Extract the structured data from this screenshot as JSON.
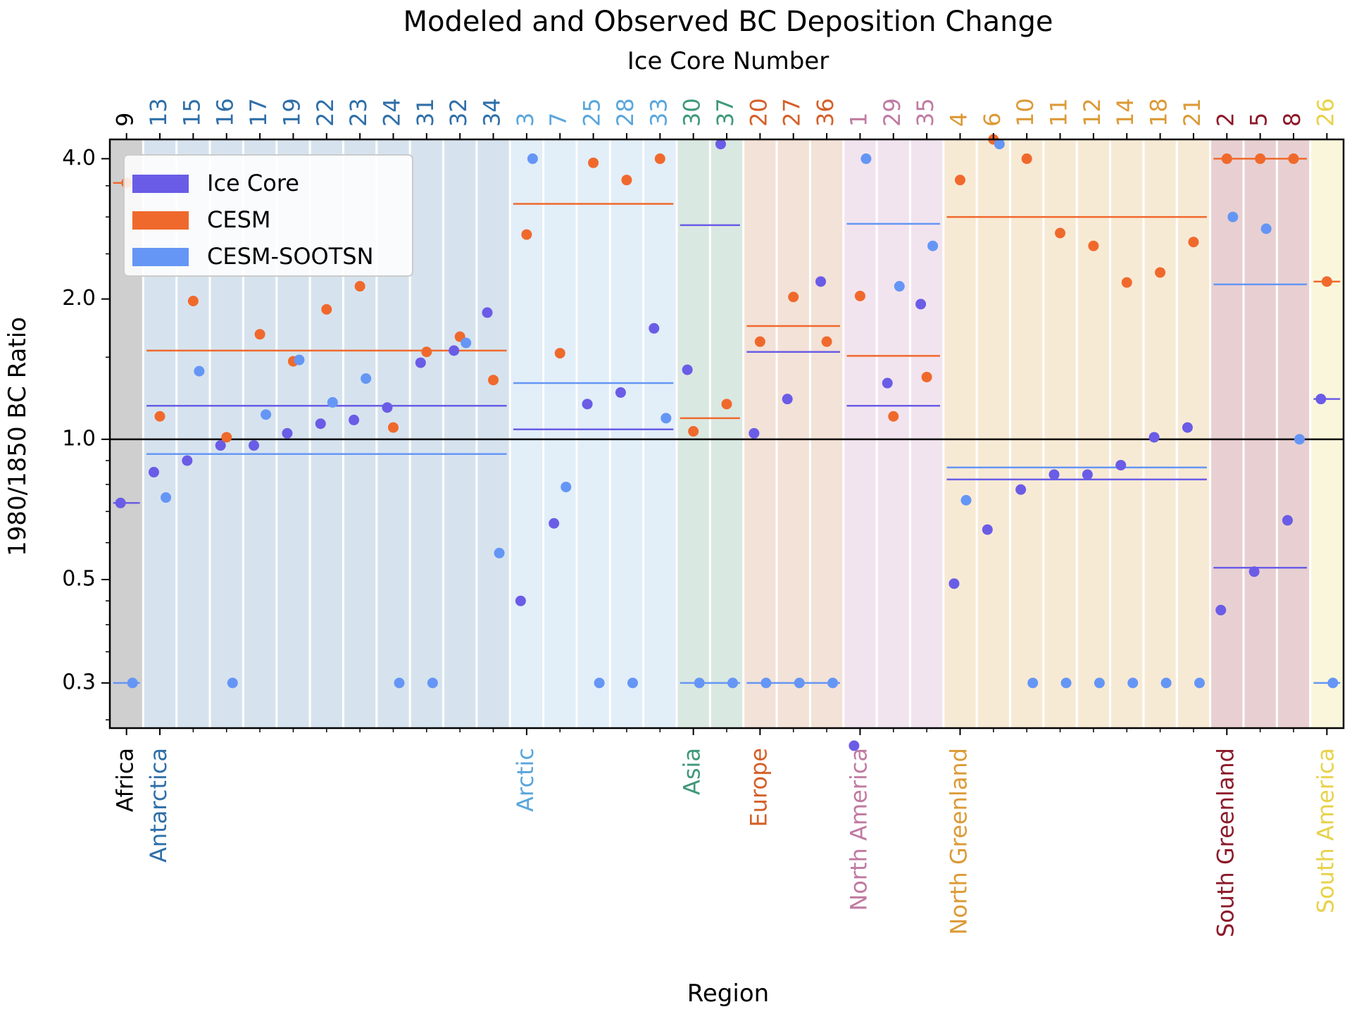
{
  "chart_data": {
    "type": "scatter",
    "title": "Modeled and Observed BC Deposition Change",
    "top_xlabel": "Ice Core Number",
    "xlabel": "Region",
    "ylabel": "1980/1850 BC Ratio",
    "yscale": "log",
    "ylim": [
      0.24,
      4.4
    ],
    "yticks": [
      "4.0",
      "2.0",
      "1.0",
      "0.5",
      "0.3"
    ],
    "reference_line": 1.0,
    "legend": {
      "placement": "top-left",
      "entries": [
        {
          "label": "Ice Core",
          "color": "#6a5ce6"
        },
        {
          "label": "CESM",
          "color": "#f0692c"
        },
        {
          "label": "CESM-SOOTSN",
          "color": "#6596f5"
        }
      ]
    },
    "colors": {
      "ice_core": "#6a5ce6",
      "cesm": "#f0692c",
      "sootsn": "#6596f5"
    },
    "groups": [
      {
        "region": "Africa",
        "color": "#000000",
        "bg": "#cfcfcf",
        "mean": {
          "ice_core": 0.73,
          "cesm": 3.55,
          "sootsn": 0.3
        },
        "cores": [
          {
            "core": "9",
            "ice_core": 0.73,
            "cesm": 3.55,
            "sootsn": 0.3
          }
        ]
      },
      {
        "region": "Antarctica",
        "color": "#2f6fa8",
        "bg": "#d6e3ee",
        "mean": {
          "ice_core": 1.18,
          "cesm": 1.55,
          "sootsn": 0.93
        },
        "cores": [
          {
            "core": "13",
            "ice_core": 0.85,
            "cesm": 1.12,
            "sootsn": 0.75
          },
          {
            "core": "15",
            "ice_core": 0.9,
            "cesm": 1.98,
            "sootsn": 1.4
          },
          {
            "core": "16",
            "ice_core": 0.97,
            "cesm": 1.01,
            "sootsn": 0.3
          },
          {
            "core": "17",
            "ice_core": 0.97,
            "cesm": 1.68,
            "sootsn": 1.13
          },
          {
            "core": "19",
            "ice_core": 1.03,
            "cesm": 1.47,
            "sootsn": 1.48
          },
          {
            "core": "22",
            "ice_core": 1.08,
            "cesm": 1.9,
            "sootsn": 1.2
          },
          {
            "core": "23",
            "ice_core": 1.1,
            "cesm": 2.13,
            "sootsn": 1.35
          },
          {
            "core": "24",
            "ice_core": 1.17,
            "cesm": 1.06,
            "sootsn": 0.3
          },
          {
            "core": "31",
            "ice_core": 1.46,
            "cesm": 1.54,
            "sootsn": 0.3
          },
          {
            "core": "32",
            "ice_core": 1.55,
            "cesm": 1.66,
            "sootsn": 1.61
          },
          {
            "core": "34",
            "ice_core": 1.87,
            "cesm": 1.34,
            "sootsn": 0.57
          }
        ]
      },
      {
        "region": "Arctic",
        "color": "#5aa6dc",
        "bg": "#e2eef8",
        "mean": {
          "ice_core": 1.05,
          "cesm": 3.2,
          "sootsn": 1.32
        },
        "cores": [
          {
            "core": "3",
            "ice_core": 0.45,
            "cesm": 2.75,
            "sootsn": 4.0
          },
          {
            "core": "7",
            "ice_core": 0.66,
            "cesm": 1.53,
            "sootsn": 0.79
          },
          {
            "core": "25",
            "ice_core": 1.19,
            "cesm": 3.92,
            "sootsn": 0.3
          },
          {
            "core": "28",
            "ice_core": 1.26,
            "cesm": 3.6,
            "sootsn": 0.3
          },
          {
            "core": "33",
            "ice_core": 1.73,
            "cesm": 4.0,
            "sootsn": 1.11
          }
        ]
      },
      {
        "region": "Asia",
        "color": "#3e9978",
        "bg": "#dae8e2",
        "mean": {
          "ice_core": 2.88,
          "cesm": 1.11,
          "sootsn": 0.3
        },
        "cores": [
          {
            "core": "30",
            "ice_core": 1.41,
            "cesm": 1.04,
            "sootsn": 0.3
          },
          {
            "core": "37",
            "ice_core": 4.3,
            "cesm": 1.19,
            "sootsn": 0.3
          }
        ]
      },
      {
        "region": "Europe",
        "color": "#d4602a",
        "bg": "#f3e2d7",
        "mean": {
          "ice_core": 1.54,
          "cesm": 1.75,
          "sootsn": 0.3
        },
        "cores": [
          {
            "core": "20",
            "ice_core": 1.03,
            "cesm": 1.62,
            "sootsn": 0.3
          },
          {
            "core": "27",
            "ice_core": 1.22,
            "cesm": 2.02,
            "sootsn": 0.3
          },
          {
            "core": "36",
            "ice_core": 2.18,
            "cesm": 1.62,
            "sootsn": 0.3
          }
        ]
      },
      {
        "region": "North America",
        "color": "#c07aa2",
        "bg": "#f2e4ee",
        "mean": {
          "ice_core": 1.18,
          "cesm": 1.51,
          "sootsn": 2.9
        },
        "cores": [
          {
            "core": "1",
            "ice_core": 0.22,
            "cesm": 2.03,
            "sootsn": 4.0
          },
          {
            "core": "29",
            "ice_core": 1.32,
            "cesm": 1.12,
            "sootsn": 2.13
          },
          {
            "core": "35",
            "ice_core": 1.95,
            "cesm": 1.36,
            "sootsn": 2.6
          }
        ]
      },
      {
        "region": "North Greenland",
        "color": "#dc9a36",
        "bg": "#f7ead5",
        "mean": {
          "ice_core": 0.82,
          "cesm": 3.0,
          "sootsn": 0.87
        },
        "cores": [
          {
            "core": "4",
            "ice_core": 0.49,
            "cesm": 3.6,
            "sootsn": 0.74
          },
          {
            "core": "6",
            "ice_core": 0.64,
            "cesm": 4.4,
            "sootsn": 4.3
          },
          {
            "core": "10",
            "ice_core": 0.78,
            "cesm": 4.0,
            "sootsn": 0.3
          },
          {
            "core": "11",
            "ice_core": 0.84,
            "cesm": 2.77,
            "sootsn": 0.3
          },
          {
            "core": "12",
            "ice_core": 0.84,
            "cesm": 2.6,
            "sootsn": 0.3
          },
          {
            "core": "14",
            "ice_core": 0.88,
            "cesm": 2.17,
            "sootsn": 0.3
          },
          {
            "core": "18",
            "ice_core": 1.01,
            "cesm": 2.28,
            "sootsn": 0.3
          },
          {
            "core": "21",
            "ice_core": 1.06,
            "cesm": 2.65,
            "sootsn": 0.3
          }
        ]
      },
      {
        "region": "South Greenland",
        "color": "#8c1a2a",
        "bg": "#e8d0d2",
        "mean": {
          "ice_core": 0.53,
          "cesm": 4.0,
          "sootsn": 2.15
        },
        "cores": [
          {
            "core": "2",
            "ice_core": 0.43,
            "cesm": 4.0,
            "sootsn": 3.0
          },
          {
            "core": "5",
            "ice_core": 0.52,
            "cesm": 4.0,
            "sootsn": 2.83
          },
          {
            "core": "8",
            "ice_core": 0.67,
            "cesm": 4.0,
            "sootsn": 1.0
          }
        ]
      },
      {
        "region": "South America",
        "color": "#e8d24a",
        "bg": "#faf6dc",
        "mean": {
          "ice_core": 1.22,
          "cesm": 2.18,
          "sootsn": 0.3
        },
        "cores": [
          {
            "core": "26",
            "ice_core": 1.22,
            "cesm": 2.18,
            "sootsn": 0.3
          }
        ]
      }
    ]
  }
}
